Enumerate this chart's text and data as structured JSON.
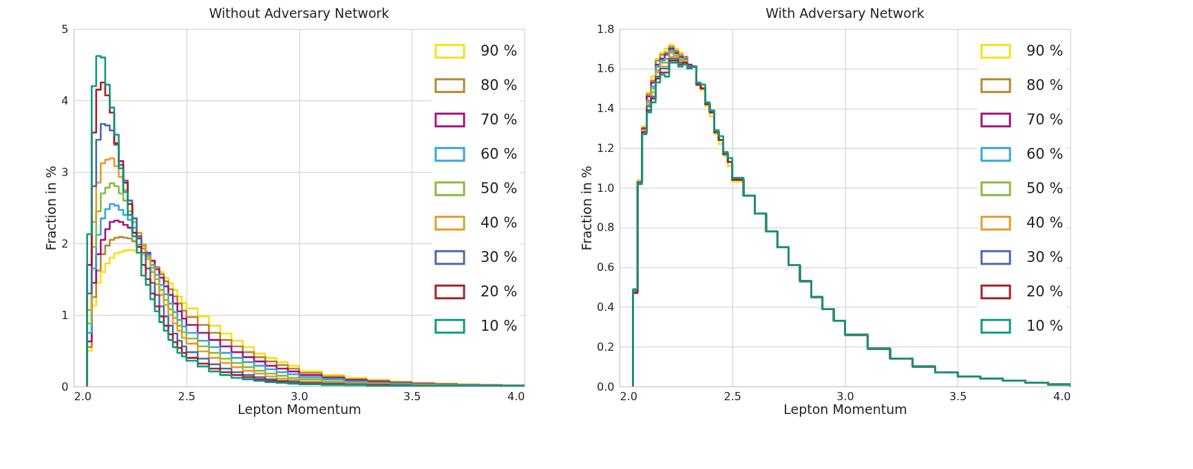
{
  "chart_data": [
    {
      "type": "histogram",
      "title": "Without Adversary Network",
      "xlabel": "Lepton Momentum",
      "ylabel": "Fraction in %",
      "xlim": [
        2.0,
        4.0
      ],
      "ylim": [
        0,
        5
      ],
      "xticks": [
        {
          "value": 2.0,
          "label": "2.0"
        },
        {
          "value": 2.5,
          "label": "2.5"
        },
        {
          "value": 3.0,
          "label": "3.0"
        },
        {
          "value": 3.5,
          "label": "3.5"
        },
        {
          "value": 4.0,
          "label": "4.0"
        }
      ],
      "yticks": [
        0,
        1,
        2,
        3,
        4,
        5
      ],
      "grid": true,
      "legend": "top right",
      "bins": [
        2.06,
        2.08,
        2.1,
        2.12,
        2.14,
        2.16,
        2.18,
        2.2,
        2.22,
        2.24,
        2.26,
        2.28,
        2.3,
        2.32,
        2.34,
        2.36,
        2.38,
        2.4,
        2.42,
        2.44,
        2.46,
        2.48,
        2.5,
        2.55,
        2.6,
        2.65,
        2.7,
        2.75,
        2.8,
        2.85,
        2.9,
        2.95,
        3.0,
        3.1,
        3.2,
        3.3,
        3.4,
        3.5,
        3.6,
        3.7,
        3.8,
        3.9,
        4.0
      ],
      "series": [
        {
          "name": "90 %",
          "color": "#f7e114",
          "values": [
            0.5,
            1.13,
            1.45,
            1.6,
            1.72,
            1.8,
            1.86,
            1.88,
            1.9,
            1.91,
            1.9,
            1.87,
            1.84,
            1.8,
            1.74,
            1.67,
            1.6,
            1.52,
            1.44,
            1.35,
            1.26,
            1.17,
            1.09,
            0.98,
            0.85,
            0.74,
            0.64,
            0.55,
            0.46,
            0.4,
            0.34,
            0.29,
            0.21,
            0.16,
            0.12,
            0.09,
            0.07,
            0.05,
            0.04,
            0.03,
            0.02,
            0.01
          ]
        },
        {
          "name": "80 %",
          "color": "#b0892f",
          "values": [
            0.55,
            1.25,
            1.62,
            1.85,
            1.97,
            2.05,
            2.08,
            2.09,
            2.08,
            2.07,
            2.03,
            1.98,
            1.93,
            1.85,
            1.76,
            1.67,
            1.57,
            1.47,
            1.36,
            1.26,
            1.16,
            1.06,
            0.97,
            0.86,
            0.75,
            0.65,
            0.56,
            0.48,
            0.41,
            0.35,
            0.3,
            0.25,
            0.19,
            0.14,
            0.1,
            0.08,
            0.06,
            0.04,
            0.03,
            0.02,
            0.02,
            0.01
          ]
        },
        {
          "name": "70 %",
          "color": "#a5137f",
          "values": [
            0.63,
            1.45,
            1.85,
            2.05,
            2.2,
            2.3,
            2.32,
            2.3,
            2.26,
            2.22,
            2.15,
            2.07,
            1.98,
            1.87,
            1.76,
            1.64,
            1.52,
            1.4,
            1.28,
            1.16,
            1.05,
            0.95,
            0.86,
            0.75,
            0.65,
            0.56,
            0.48,
            0.41,
            0.35,
            0.29,
            0.25,
            0.21,
            0.16,
            0.12,
            0.09,
            0.07,
            0.05,
            0.04,
            0.03,
            0.02,
            0.01,
            0.01
          ]
        },
        {
          "name": "60 %",
          "color": "#34a6dc",
          "values": [
            0.75,
            1.65,
            2.12,
            2.35,
            2.48,
            2.55,
            2.53,
            2.47,
            2.4,
            2.33,
            2.22,
            2.1,
            1.97,
            1.84,
            1.7,
            1.56,
            1.42,
            1.29,
            1.16,
            1.04,
            0.93,
            0.84,
            0.75,
            0.64,
            0.55,
            0.47,
            0.4,
            0.34,
            0.29,
            0.24,
            0.2,
            0.17,
            0.13,
            0.1,
            0.07,
            0.05,
            0.04,
            0.03,
            0.02,
            0.02,
            0.01,
            0.01
          ]
        },
        {
          "name": "50 %",
          "color": "#8cba3e",
          "values": [
            0.88,
            1.95,
            2.45,
            2.7,
            2.78,
            2.84,
            2.8,
            2.7,
            2.6,
            2.45,
            2.3,
            2.15,
            1.98,
            1.82,
            1.66,
            1.5,
            1.35,
            1.21,
            1.08,
            0.96,
            0.85,
            0.76,
            0.67,
            0.56,
            0.47,
            0.39,
            0.33,
            0.27,
            0.22,
            0.18,
            0.15,
            0.12,
            0.1,
            0.07,
            0.05,
            0.04,
            0.03,
            0.02,
            0.02,
            0.01,
            0.01,
            0.01
          ]
        },
        {
          "name": "40 %",
          "color": "#e49d26",
          "values": [
            1.07,
            2.3,
            2.85,
            3.12,
            3.17,
            3.19,
            3.08,
            2.93,
            2.75,
            2.55,
            2.35,
            2.15,
            1.97,
            1.78,
            1.6,
            1.43,
            1.28,
            1.14,
            1.0,
            0.88,
            0.78,
            0.68,
            0.6,
            0.49,
            0.4,
            0.33,
            0.27,
            0.22,
            0.18,
            0.14,
            0.11,
            0.09,
            0.07,
            0.05,
            0.04,
            0.03,
            0.02,
            0.02,
            0.01,
            0.01,
            0.01,
            0.01
          ]
        },
        {
          "name": "30 %",
          "color": "#4a68b0",
          "values": [
            1.3,
            2.8,
            3.45,
            3.67,
            3.65,
            3.58,
            3.38,
            3.1,
            2.88,
            2.6,
            2.35,
            2.1,
            1.87,
            1.65,
            1.45,
            1.28,
            1.12,
            0.98,
            0.85,
            0.74,
            0.64,
            0.56,
            0.48,
            0.39,
            0.31,
            0.25,
            0.2,
            0.16,
            0.13,
            0.1,
            0.08,
            0.07,
            0.05,
            0.04,
            0.03,
            0.02,
            0.02,
            0.01,
            0.01,
            0.01,
            0.01,
            0.01
          ]
        },
        {
          "name": "20 %",
          "color": "#a82121",
          "values": [
            1.7,
            3.55,
            4.15,
            4.25,
            4.07,
            3.83,
            3.4,
            3.15,
            2.85,
            2.55,
            2.15,
            1.95,
            1.7,
            1.5,
            1.3,
            1.12,
            0.98,
            0.85,
            0.73,
            0.62,
            0.54,
            0.47,
            0.4,
            0.32,
            0.25,
            0.2,
            0.16,
            0.13,
            0.1,
            0.08,
            0.07,
            0.05,
            0.04,
            0.03,
            0.02,
            0.02,
            0.01,
            0.01,
            0.01,
            0.01,
            0.01,
            0.01
          ]
        },
        {
          "name": "10 %",
          "color": "#0c9a82",
          "values": [
            2.13,
            4.2,
            4.62,
            4.6,
            4.22,
            3.9,
            3.52,
            3.05,
            2.72,
            2.4,
            2.1,
            1.87,
            1.55,
            1.42,
            1.22,
            1.05,
            0.9,
            0.78,
            0.65,
            0.55,
            0.47,
            0.42,
            0.36,
            0.28,
            0.21,
            0.16,
            0.12,
            0.1,
            0.08,
            0.06,
            0.05,
            0.04,
            0.03,
            0.02,
            0.02,
            0.01,
            0.01,
            0.01,
            0.01,
            0.01,
            0.01,
            0.01
          ]
        }
      ]
    },
    {
      "type": "histogram",
      "title": "With Adversary Network",
      "xlabel": "Lepton Momentum",
      "ylabel": "Fraction in %",
      "xlim": [
        2.0,
        4.0
      ],
      "ylim": [
        0,
        1.8
      ],
      "xticks": [
        {
          "value": 2.0,
          "label": "2.0"
        },
        {
          "value": 2.5,
          "label": "2.5"
        },
        {
          "value": 3.0,
          "label": "3.0"
        },
        {
          "value": 3.5,
          "label": "3.5"
        },
        {
          "value": 4.0,
          "label": "4.0"
        }
      ],
      "yticks": [
        {
          "value": 0,
          "label": "0.0"
        },
        {
          "value": 0.2,
          "label": "0.2"
        },
        {
          "value": 0.4,
          "label": "0.4"
        },
        {
          "value": 0.6,
          "label": "0.6"
        },
        {
          "value": 0.8,
          "label": "0.8"
        },
        {
          "value": 1.0,
          "label": "1.0"
        },
        {
          "value": 1.2,
          "label": "1.2"
        },
        {
          "value": 1.4,
          "label": "1.4"
        },
        {
          "value": 1.6,
          "label": "1.6"
        },
        {
          "value": 1.8,
          "label": "1.8"
        }
      ],
      "grid": true,
      "legend": "top right",
      "bins": [
        2.06,
        2.08,
        2.1,
        2.12,
        2.14,
        2.16,
        2.18,
        2.2,
        2.22,
        2.24,
        2.26,
        2.28,
        2.3,
        2.32,
        2.34,
        2.36,
        2.38,
        2.4,
        2.42,
        2.44,
        2.46,
        2.48,
        2.5,
        2.55,
        2.6,
        2.65,
        2.7,
        2.75,
        2.8,
        2.85,
        2.9,
        2.95,
        3.0,
        3.1,
        3.2,
        3.3,
        3.4,
        3.5,
        3.6,
        3.7,
        3.8,
        3.9,
        4.0
      ],
      "series": [
        {
          "name": "90 %",
          "color": "#f7e114",
          "values": [
            0.48,
            1.04,
            1.31,
            1.48,
            1.56,
            1.65,
            1.68,
            1.7,
            1.72,
            1.7,
            1.68,
            1.66,
            1.62,
            1.61,
            1.52,
            1.49,
            1.41,
            1.36,
            1.27,
            1.22,
            1.16,
            1.11,
            1.03,
            0.96,
            0.87,
            0.78,
            0.7,
            0.61,
            0.53,
            0.45,
            0.39,
            0.33,
            0.26,
            0.19,
            0.14,
            0.1,
            0.07,
            0.05,
            0.04,
            0.03,
            0.02,
            0.01
          ]
        },
        {
          "name": "80 %",
          "color": "#b0892f",
          "values": [
            0.48,
            1.03,
            1.3,
            1.47,
            1.54,
            1.64,
            1.67,
            1.68,
            1.71,
            1.69,
            1.67,
            1.66,
            1.62,
            1.61,
            1.52,
            1.5,
            1.42,
            1.38,
            1.28,
            1.24,
            1.17,
            1.13,
            1.04,
            0.96,
            0.87,
            0.78,
            0.7,
            0.61,
            0.53,
            0.45,
            0.39,
            0.33,
            0.26,
            0.19,
            0.14,
            0.1,
            0.07,
            0.05,
            0.04,
            0.03,
            0.02,
            0.01
          ]
        },
        {
          "name": "70 %",
          "color": "#a5137f",
          "values": [
            0.48,
            1.03,
            1.3,
            1.46,
            1.53,
            1.62,
            1.65,
            1.67,
            1.7,
            1.68,
            1.66,
            1.65,
            1.62,
            1.61,
            1.52,
            1.5,
            1.42,
            1.38,
            1.28,
            1.24,
            1.17,
            1.13,
            1.04,
            0.96,
            0.87,
            0.78,
            0.7,
            0.61,
            0.53,
            0.45,
            0.39,
            0.33,
            0.26,
            0.19,
            0.14,
            0.1,
            0.07,
            0.05,
            0.04,
            0.03,
            0.02,
            0.01
          ]
        },
        {
          "name": "60 %",
          "color": "#34a6dc",
          "values": [
            0.48,
            1.03,
            1.29,
            1.44,
            1.51,
            1.61,
            1.64,
            1.65,
            1.69,
            1.67,
            1.65,
            1.65,
            1.61,
            1.61,
            1.52,
            1.5,
            1.42,
            1.38,
            1.28,
            1.24,
            1.17,
            1.13,
            1.04,
            0.96,
            0.87,
            0.78,
            0.7,
            0.61,
            0.53,
            0.45,
            0.39,
            0.33,
            0.26,
            0.19,
            0.14,
            0.1,
            0.07,
            0.05,
            0.04,
            0.03,
            0.02,
            0.01
          ]
        },
        {
          "name": "50 %",
          "color": "#8cba3e",
          "values": [
            0.48,
            1.03,
            1.29,
            1.43,
            1.5,
            1.59,
            1.63,
            1.63,
            1.68,
            1.67,
            1.65,
            1.64,
            1.61,
            1.61,
            1.52,
            1.5,
            1.42,
            1.38,
            1.28,
            1.24,
            1.17,
            1.13,
            1.04,
            0.96,
            0.87,
            0.78,
            0.7,
            0.61,
            0.53,
            0.45,
            0.39,
            0.33,
            0.26,
            0.19,
            0.14,
            0.1,
            0.07,
            0.05,
            0.04,
            0.03,
            0.02,
            0.01
          ]
        },
        {
          "name": "40 %",
          "color": "#e49d26",
          "values": [
            0.48,
            1.03,
            1.29,
            1.42,
            1.48,
            1.58,
            1.61,
            1.61,
            1.66,
            1.66,
            1.64,
            1.64,
            1.61,
            1.61,
            1.52,
            1.5,
            1.42,
            1.38,
            1.28,
            1.24,
            1.17,
            1.13,
            1.04,
            0.96,
            0.87,
            0.78,
            0.7,
            0.61,
            0.53,
            0.45,
            0.39,
            0.33,
            0.26,
            0.19,
            0.14,
            0.1,
            0.07,
            0.05,
            0.04,
            0.03,
            0.02,
            0.01
          ]
        },
        {
          "name": "30 %",
          "color": "#4a68b0",
          "values": [
            0.48,
            1.03,
            1.28,
            1.41,
            1.46,
            1.56,
            1.6,
            1.6,
            1.65,
            1.65,
            1.63,
            1.63,
            1.61,
            1.61,
            1.52,
            1.5,
            1.42,
            1.38,
            1.28,
            1.24,
            1.17,
            1.13,
            1.04,
            0.96,
            0.87,
            0.78,
            0.7,
            0.61,
            0.53,
            0.45,
            0.39,
            0.33,
            0.26,
            0.19,
            0.14,
            0.1,
            0.07,
            0.05,
            0.04,
            0.03,
            0.02,
            0.01
          ]
        },
        {
          "name": "20 %",
          "color": "#a82121",
          "values": [
            0.47,
            1.02,
            1.28,
            1.39,
            1.45,
            1.55,
            1.58,
            1.58,
            1.64,
            1.64,
            1.62,
            1.63,
            1.6,
            1.61,
            1.52,
            1.5,
            1.42,
            1.38,
            1.28,
            1.24,
            1.17,
            1.13,
            1.04,
            0.96,
            0.87,
            0.78,
            0.7,
            0.61,
            0.53,
            0.45,
            0.39,
            0.33,
            0.26,
            0.19,
            0.14,
            0.1,
            0.07,
            0.05,
            0.04,
            0.03,
            0.02,
            0.01
          ]
        },
        {
          "name": "10 %",
          "color": "#0c9a82",
          "values": [
            0.49,
            1.02,
            1.27,
            1.38,
            1.43,
            1.53,
            1.57,
            1.56,
            1.63,
            1.63,
            1.61,
            1.62,
            1.6,
            1.61,
            1.53,
            1.52,
            1.43,
            1.39,
            1.29,
            1.26,
            1.18,
            1.15,
            1.05,
            0.96,
            0.87,
            0.78,
            0.7,
            0.61,
            0.53,
            0.45,
            0.39,
            0.33,
            0.26,
            0.19,
            0.14,
            0.1,
            0.07,
            0.05,
            0.04,
            0.03,
            0.02,
            0.01
          ]
        }
      ]
    }
  ]
}
